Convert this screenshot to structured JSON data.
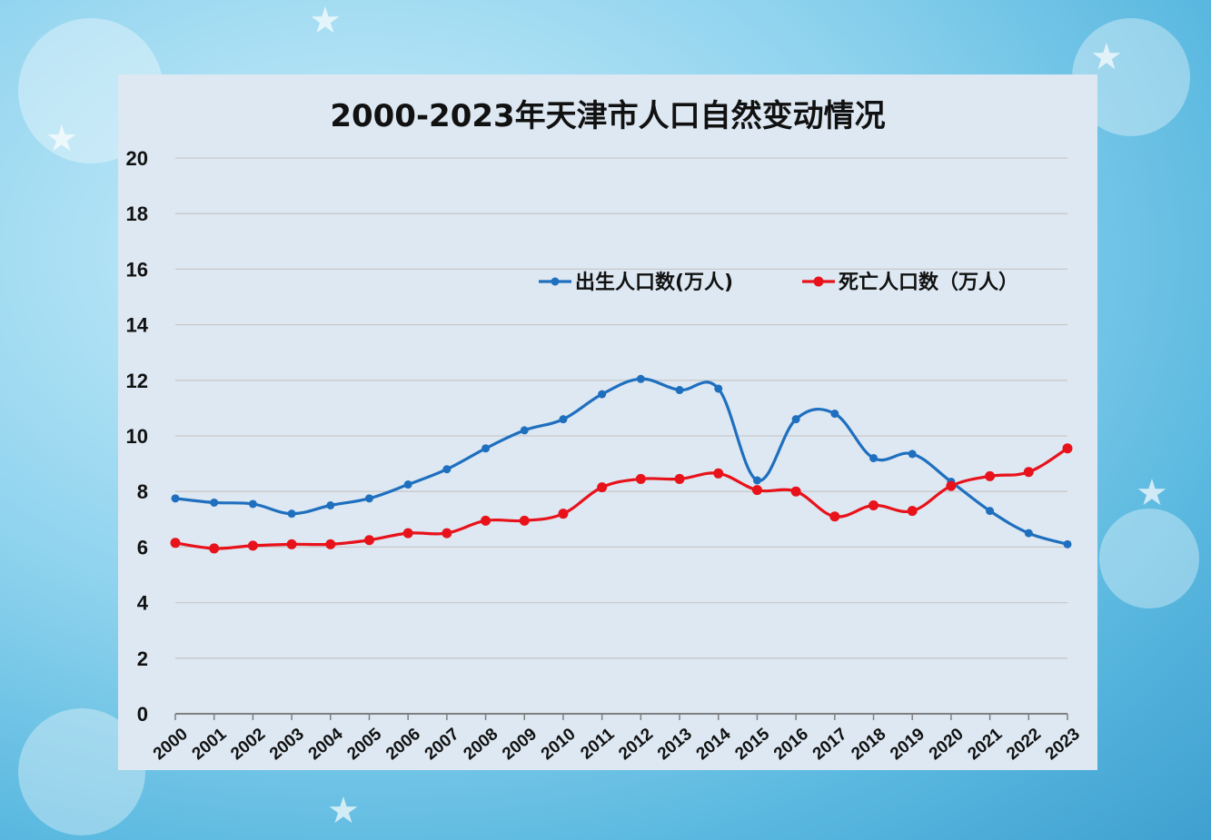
{
  "chart_data": {
    "type": "line",
    "title": "2000-2023年天津市人口自然变动情况",
    "xlabel": "",
    "ylabel": "",
    "ylim": [
      0,
      20
    ],
    "yticks": [
      0,
      2,
      4,
      6,
      8,
      10,
      12,
      14,
      16,
      18,
      20
    ],
    "grid": true,
    "legend_position": "top-right",
    "categories": [
      "2000",
      "2001",
      "2002",
      "2003",
      "2004",
      "2005",
      "2006",
      "2007",
      "2008",
      "2009",
      "2010",
      "2011",
      "2012",
      "2013",
      "2014",
      "2015",
      "2016",
      "2017",
      "2018",
      "2019",
      "2020",
      "2021",
      "2022",
      "2023"
    ],
    "series": [
      {
        "name": "出生人口数(万人)",
        "color": "#1f6fbf",
        "values": [
          7.75,
          7.6,
          7.55,
          7.2,
          7.5,
          7.75,
          8.25,
          8.8,
          9.55,
          10.2,
          10.6,
          11.5,
          12.05,
          11.65,
          11.7,
          8.4,
          10.6,
          10.8,
          9.2,
          9.35,
          8.35,
          7.3,
          6.5,
          6.1
        ]
      },
      {
        "name": "死亡人口数（万人）",
        "color": "#e8121b",
        "values": [
          6.15,
          5.95,
          6.05,
          6.1,
          6.1,
          6.25,
          6.5,
          6.5,
          6.95,
          6.95,
          7.2,
          8.15,
          8.45,
          8.45,
          8.65,
          8.05,
          8.0,
          7.1,
          7.5,
          7.3,
          8.2,
          8.55,
          8.7,
          9.55
        ]
      }
    ]
  }
}
